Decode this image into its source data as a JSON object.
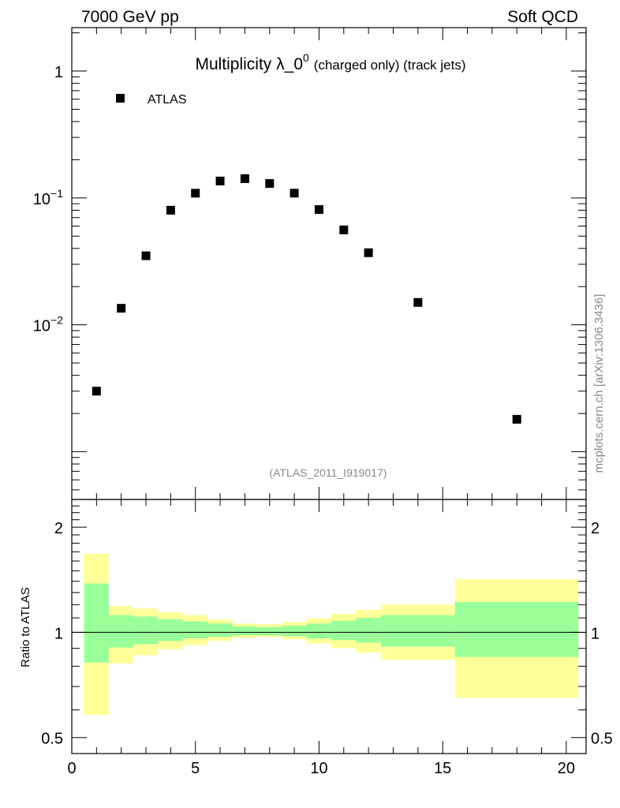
{
  "header": {
    "left": "7000 GeV pp",
    "right": "Soft QCD"
  },
  "side_label": "mcplots.cern.ch [arXiv:1306.3436]",
  "chart_data": [
    {
      "type": "scatter",
      "title_main": "Multiplicity λ_0",
      "title_sup": "0",
      "title_sub": "(charged only) (track jets)",
      "analysis_tag": "(ATLAS_2011_I919017)",
      "yscale": "log",
      "xlim": [
        0,
        20.8
      ],
      "ylim": [
        0.00042,
        2.2
      ],
      "y_tick_labels": [
        {
          "base": "1",
          "exp": "",
          "value": 1
        },
        {
          "base": "10",
          "exp": "−1",
          "value": 0.1
        },
        {
          "base": "10",
          "exp": "−2",
          "value": 0.01
        }
      ],
      "legend": {
        "position": "top-left",
        "entries": [
          "ATLAS"
        ]
      },
      "series": [
        {
          "name": "ATLAS",
          "marker": "square",
          "color": "#000000",
          "x": [
            1,
            2,
            3,
            4,
            5,
            6,
            7,
            8,
            9,
            10,
            11,
            12,
            14,
            18
          ],
          "y": [
            0.003,
            0.0135,
            0.035,
            0.08,
            0.109,
            0.136,
            0.142,
            0.13,
            0.109,
            0.081,
            0.056,
            0.037,
            0.015,
            0.0018
          ]
        }
      ]
    },
    {
      "type": "area",
      "ylabel": "Ratio to ATLAS",
      "yscale": "log",
      "xlim": [
        0,
        20.8
      ],
      "ylim": [
        0.45,
        2.4
      ],
      "x_tick_labels": [
        "0",
        "5",
        "10",
        "15",
        "20"
      ],
      "x_ticks": [
        0,
        5,
        10,
        15,
        20
      ],
      "y_tick_labels": [
        "2",
        "1",
        "0.5"
      ],
      "y_ticks": [
        2,
        1,
        0.5
      ],
      "reference_line": 1,
      "colors": {
        "inner_band": "#99ff99",
        "outer_band": "#ffff99"
      },
      "bins": [
        {
          "lo": 0.5,
          "hi": 1.5,
          "inner": [
            0.82,
            1.38
          ],
          "outer": [
            0.58,
            1.68
          ]
        },
        {
          "lo": 1.5,
          "hi": 2.5,
          "inner": [
            0.905,
            1.12
          ],
          "outer": [
            0.815,
            1.19
          ]
        },
        {
          "lo": 2.5,
          "hi": 3.5,
          "inner": [
            0.925,
            1.11
          ],
          "outer": [
            0.86,
            1.17
          ]
        },
        {
          "lo": 3.5,
          "hi": 4.5,
          "inner": [
            0.945,
            1.09
          ],
          "outer": [
            0.895,
            1.14
          ]
        },
        {
          "lo": 4.5,
          "hi": 5.5,
          "inner": [
            0.96,
            1.075
          ],
          "outer": [
            0.92,
            1.12
          ]
        },
        {
          "lo": 5.5,
          "hi": 6.5,
          "inner": [
            0.97,
            1.06
          ],
          "outer": [
            0.945,
            1.09
          ]
        },
        {
          "lo": 6.5,
          "hi": 7.5,
          "inner": [
            0.98,
            1.04
          ],
          "outer": [
            0.965,
            1.06
          ]
        },
        {
          "lo": 7.5,
          "hi": 8.5,
          "inner": [
            0.98,
            1.035
          ],
          "outer": [
            0.97,
            1.055
          ]
        },
        {
          "lo": 8.5,
          "hi": 9.5,
          "inner": [
            0.975,
            1.045
          ],
          "outer": [
            0.955,
            1.07
          ]
        },
        {
          "lo": 9.5,
          "hi": 10.5,
          "inner": [
            0.96,
            1.06
          ],
          "outer": [
            0.93,
            1.095
          ]
        },
        {
          "lo": 10.5,
          "hi": 11.5,
          "inner": [
            0.95,
            1.08
          ],
          "outer": [
            0.9,
            1.13
          ]
        },
        {
          "lo": 11.5,
          "hi": 12.5,
          "inner": [
            0.935,
            1.1
          ],
          "outer": [
            0.875,
            1.16
          ]
        },
        {
          "lo": 12.5,
          "hi": 15.5,
          "inner": [
            0.91,
            1.12
          ],
          "outer": [
            0.835,
            1.2
          ]
        },
        {
          "lo": 15.5,
          "hi": 20.5,
          "inner": [
            0.85,
            1.22
          ],
          "outer": [
            0.65,
            1.42
          ]
        }
      ]
    }
  ]
}
